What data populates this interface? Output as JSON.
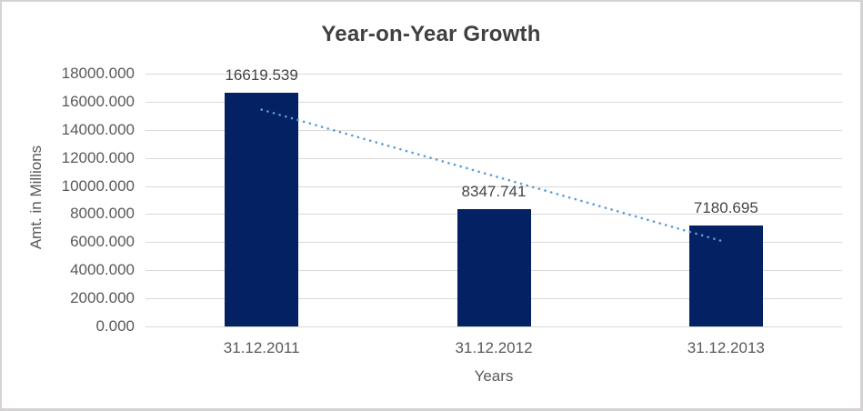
{
  "chart_data": {
    "type": "bar",
    "title": "Year-on-Year Growth",
    "xlabel": "Years",
    "ylabel": "Amt. in Millions",
    "categories": [
      "31.12.2011",
      "31.12.2012",
      "31.12.2013"
    ],
    "values": [
      16619.539,
      8347.741,
      7180.695
    ],
    "data_labels": [
      "16619.539",
      "8347.741",
      "7180.695"
    ],
    "ylim": [
      0,
      18000
    ],
    "ytick_interval": 2000,
    "ytick_labels": [
      "18000.000",
      "16000.000",
      "14000.000",
      "12000.000",
      "10000.000",
      "8000.000",
      "6000.000",
      "4000.000",
      "2000.000",
      "0.000"
    ],
    "grid": true,
    "legend": "none",
    "trendline": {
      "style": "dotted",
      "start_value": 15435,
      "end_value": 5997
    },
    "colors": {
      "bar": "#032163",
      "trendline": "#5B9BD5",
      "gridline": "#D9D9D9",
      "axis_text": "#595959",
      "title_text": "#404040",
      "border": "#D5D2D2",
      "background": "#FFFFFF"
    }
  }
}
